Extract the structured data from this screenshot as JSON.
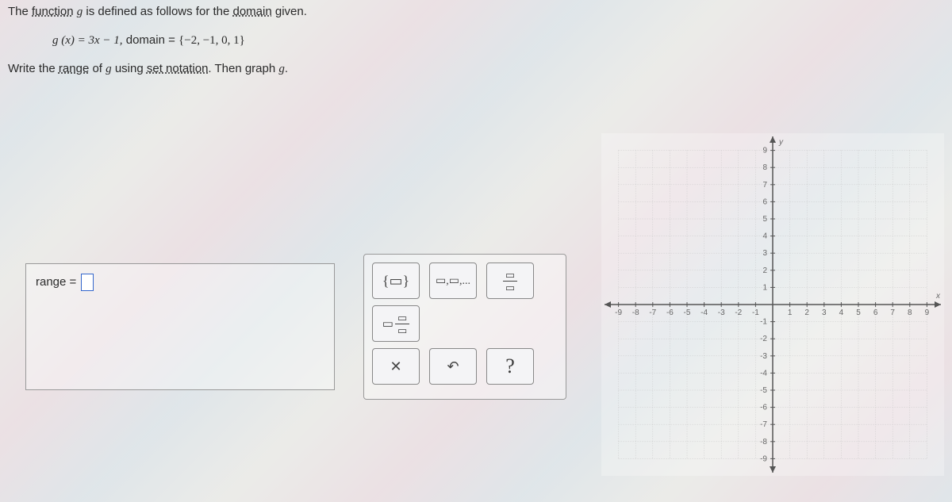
{
  "line1": {
    "pre": "The ",
    "term1": "function",
    "mid1": " ",
    "g": "g",
    "mid2": " is defined as follows for the ",
    "term2": "domain",
    "post": " given."
  },
  "line2": {
    "func": "g (x) = 3x − 1,",
    "domlabel": "   domain  = ",
    "domset": "{−2, −1, 0, 1}"
  },
  "line3": {
    "p1": "Write the ",
    "range": "range",
    "p2": " of ",
    "g": "g",
    "p3": " using ",
    "setnot": "set notation",
    "p4": ". Then graph ",
    "g2": "g",
    "p5": "."
  },
  "answer": {
    "label": "range = "
  },
  "tools": {
    "set": "{▭}",
    "list": "▭,▭,...",
    "fracsmall_top": "▭",
    "fracsmall_bot": "▭",
    "fracmixed_left": "▭",
    "fracmixed_top": "▭",
    "fracmixed_bot": "▭",
    "clear": "✕",
    "undo": "↶",
    "help": "?"
  },
  "graph": {
    "xmin": -9,
    "xmax": 9,
    "ymin": -9,
    "ymax": 9,
    "size": 432,
    "axis_color": "#555",
    "grid_color": "#bbb",
    "label_color": "#666",
    "label_fontsize": 10,
    "x_label": "x",
    "y_label": "y"
  }
}
